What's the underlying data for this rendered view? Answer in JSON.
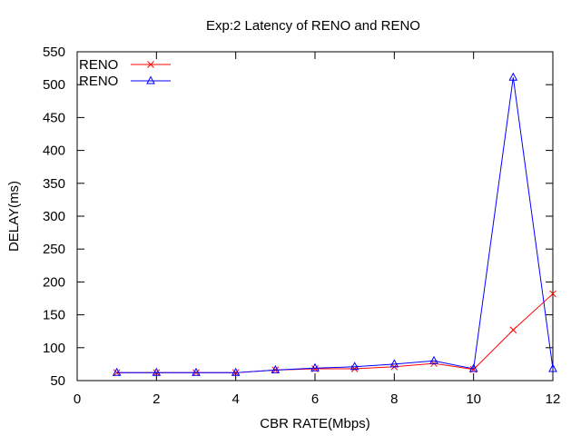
{
  "chart_data": {
    "type": "line",
    "title": "Exp:2 Latency of RENO and RENO",
    "xlabel": "CBR RATE(Mbps)",
    "ylabel": "DELAY(ms)",
    "xlim": [
      0,
      12
    ],
    "ylim": [
      50,
      550
    ],
    "xticks": [
      0,
      2,
      4,
      6,
      8,
      10,
      12
    ],
    "yticks": [
      50,
      100,
      150,
      200,
      250,
      300,
      350,
      400,
      450,
      500,
      550
    ],
    "grid": false,
    "legend_position": "top-left",
    "series": [
      {
        "name": "RENO",
        "color": "#ff0000",
        "marker": "x",
        "x": [
          1,
          2,
          3,
          4,
          5,
          6,
          7,
          8,
          9,
          10,
          11,
          12
        ],
        "y": [
          62,
          62,
          62,
          62,
          66,
          68,
          68,
          71,
          76,
          67,
          127,
          182
        ]
      },
      {
        "name": "RENO",
        "color": "#0000ff",
        "marker": "triangle",
        "x": [
          1,
          2,
          3,
          4,
          5,
          6,
          7,
          8,
          9,
          10,
          11,
          12
        ],
        "y": [
          62,
          62,
          62,
          62,
          66,
          69,
          71,
          75,
          80,
          68,
          511,
          68
        ]
      }
    ]
  }
}
